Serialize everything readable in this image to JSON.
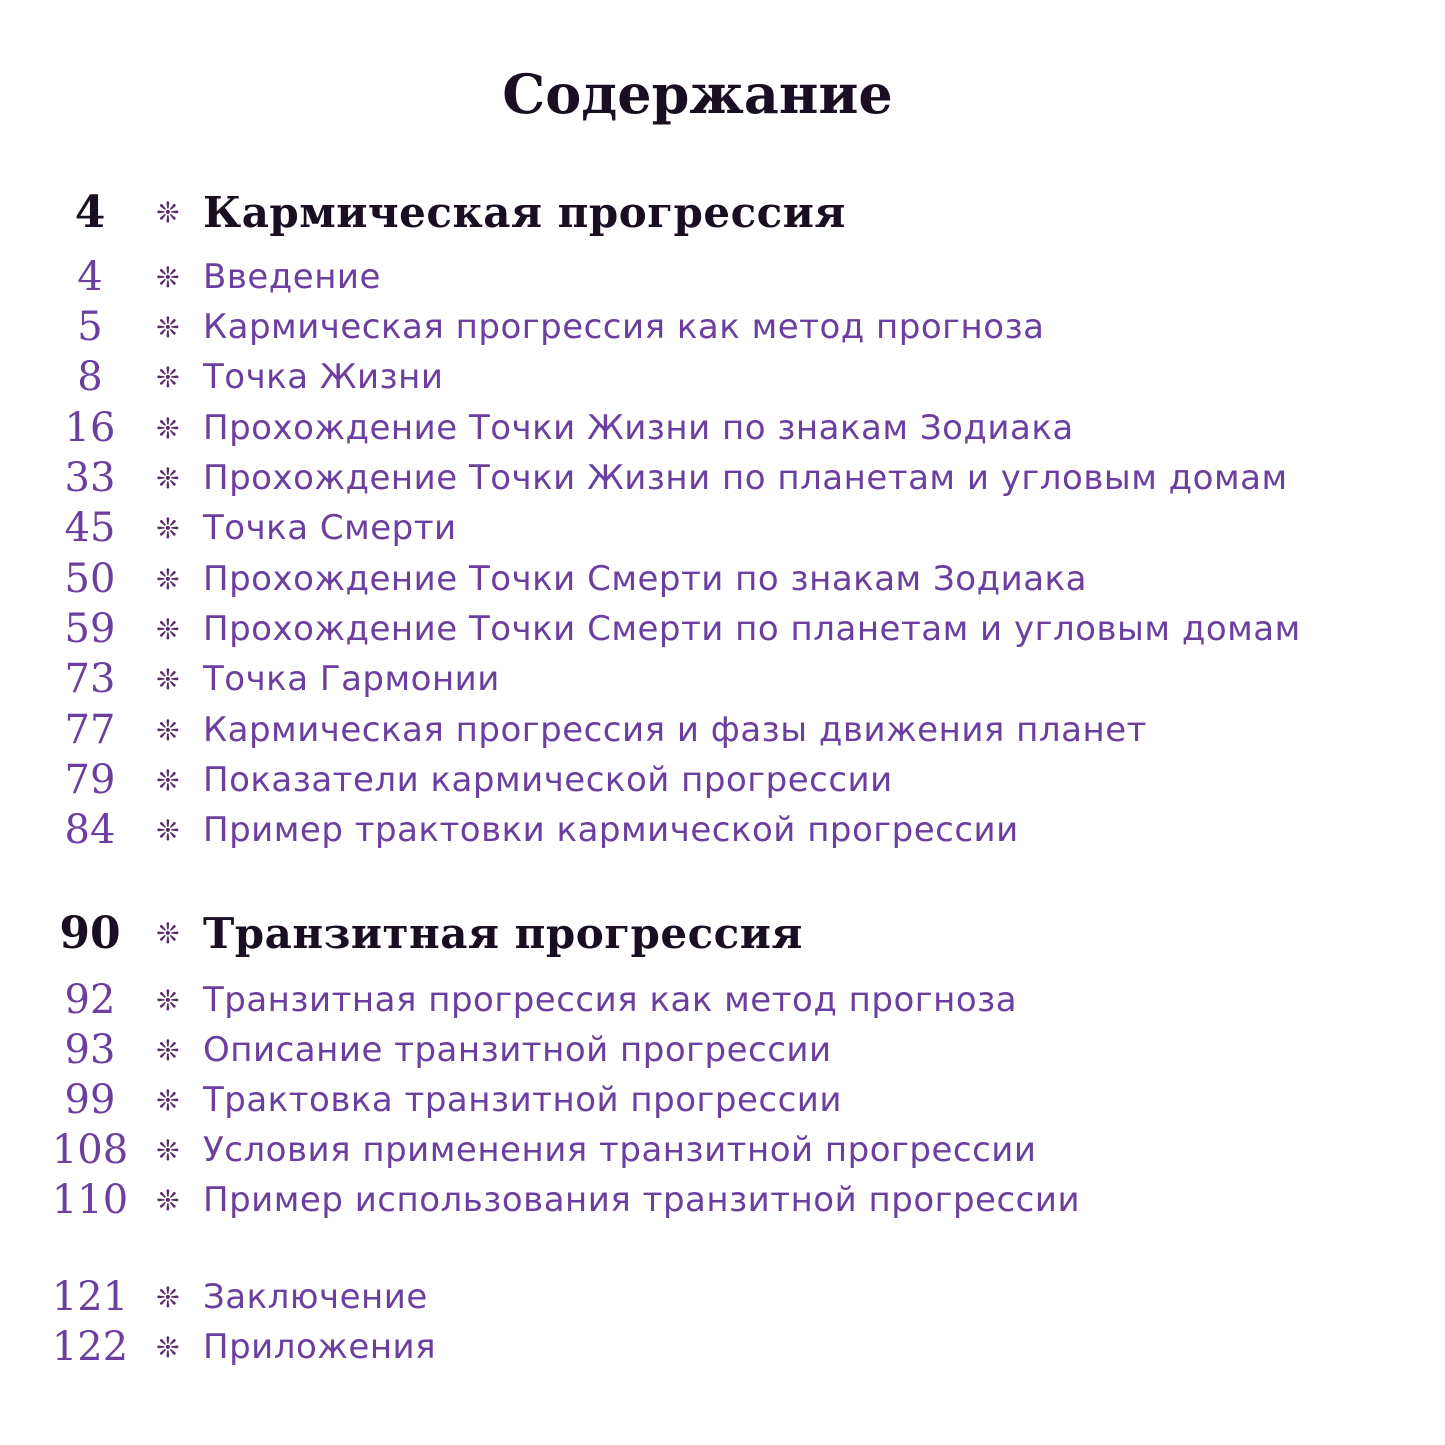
{
  "title": "Содержание",
  "bullet_icon": "eight-petal-asterisk",
  "colors": {
    "heading": "#1a0f22",
    "entry": "#6b3fa0"
  },
  "entries": [
    {
      "page": "4",
      "label": "Кармическая прогрессия",
      "heading": true
    },
    {
      "page": "4",
      "label": "Введение"
    },
    {
      "page": "5",
      "label": "Кармическая прогрессия как метод прогноза"
    },
    {
      "page": "8",
      "label": "Точка Жизни"
    },
    {
      "page": "16",
      "label": "Прохождение Точки Жизни по знакам Зодиака"
    },
    {
      "page": "33",
      "label": "Прохождение Точки Жизни по планетам и угловым домам"
    },
    {
      "page": "45",
      "label": "Точка Смерти"
    },
    {
      "page": "50",
      "label": "Прохождение Точки Смерти по знакам Зодиака"
    },
    {
      "page": "59",
      "label": "Прохождение Точки Смерти по планетам и угловым домам"
    },
    {
      "page": "73",
      "label": "Точка Гармонии"
    },
    {
      "page": "77",
      "label": "Кармическая прогрессия и фазы движения планет"
    },
    {
      "page": "79",
      "label": "Показатели кармической прогрессии"
    },
    {
      "page": "84",
      "label": "Пример трактовки кармической прогрессии"
    },
    {
      "page": "90",
      "label": "Транзитная прогрессия",
      "heading": true
    },
    {
      "page": "92",
      "label": "Транзитная прогрессия как метод прогноза"
    },
    {
      "page": "93",
      "label": "Описание транзитной прогрессии"
    },
    {
      "page": "99",
      "label": "Трактовка транзитной прогрессии"
    },
    {
      "page": "108",
      "label": "Условия применения транзитной прогрессии"
    },
    {
      "page": "110",
      "label": "Пример использования транзитной прогрессии"
    },
    {
      "page": "121",
      "label": "Заключение"
    },
    {
      "page": "122",
      "label": "Приложения"
    }
  ]
}
